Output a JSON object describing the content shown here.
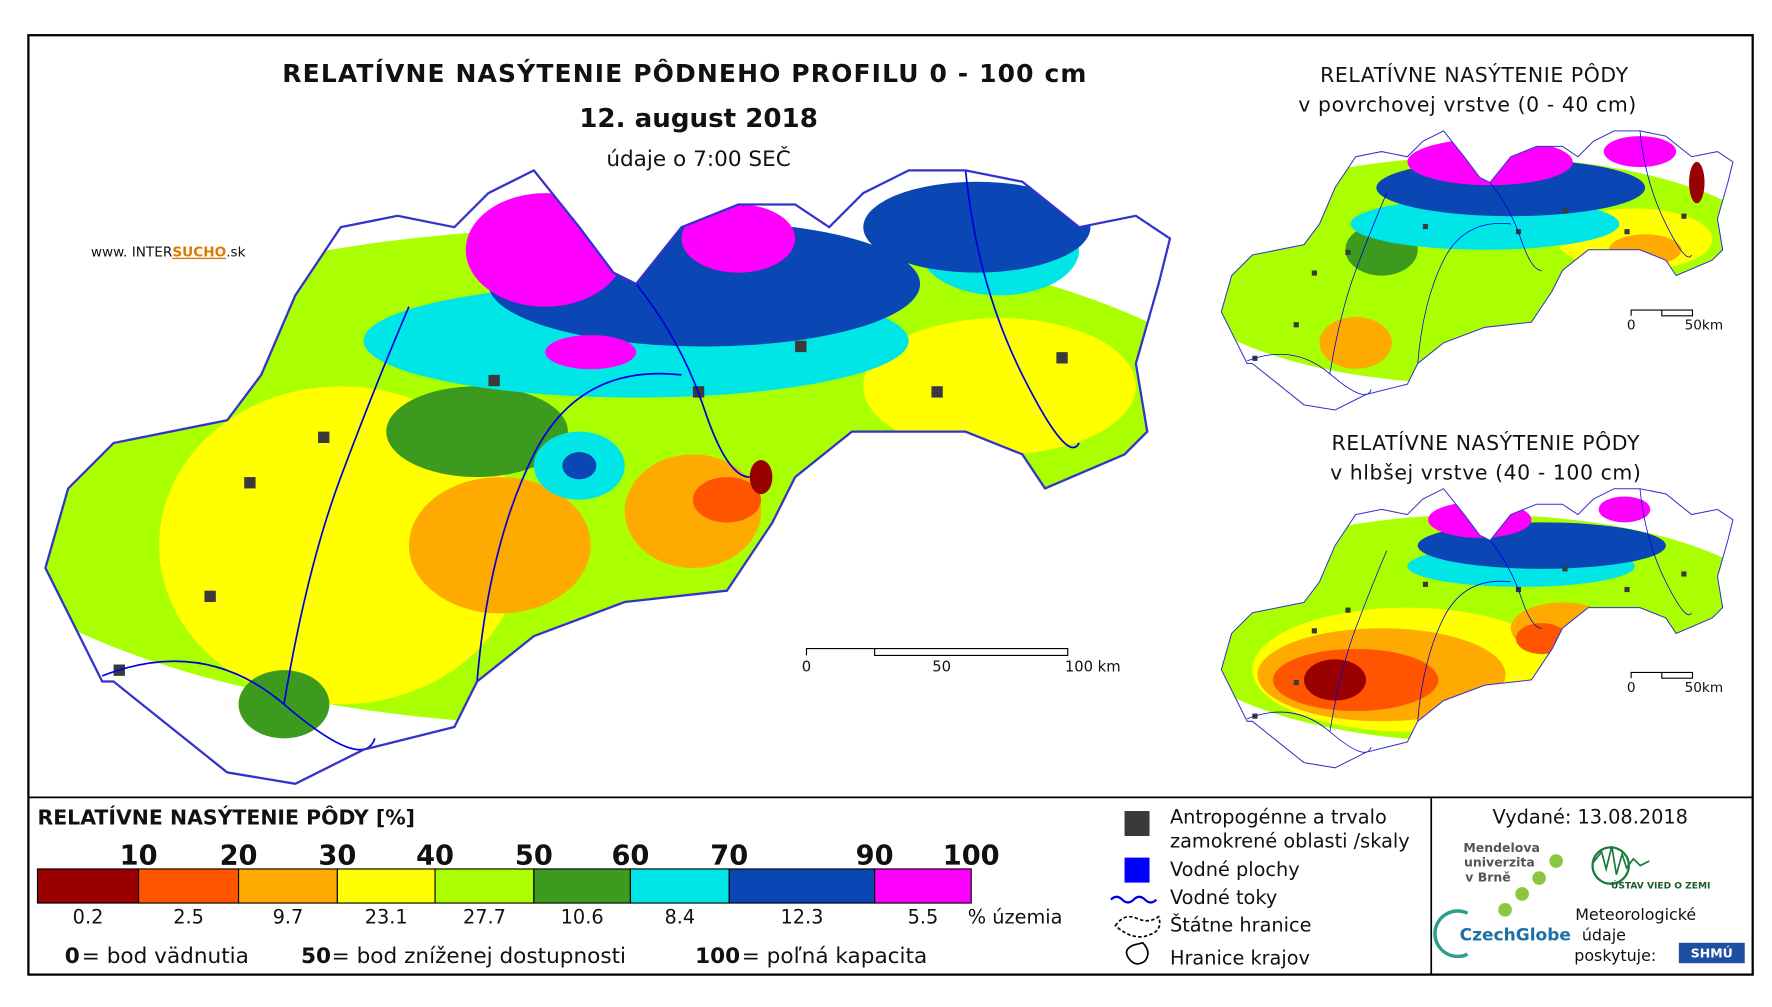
{
  "main_map": {
    "title": "RELATÍVNE NASÝTENIE PÔDNEHO PROFILU 0 - 100 cm",
    "date": "12. august 2018",
    "time_note": "údaje o 7:00 SEČ",
    "website": [
      "www. INTER",
      "SUCHO",
      ".sk"
    ],
    "scale_labels": [
      "0",
      "50",
      "100 km"
    ]
  },
  "insets": [
    {
      "title_lines": [
        "RELATÍVNE NASÝTENIE PÔDY",
        "v povrchovej vrstve (0 - 40 cm)"
      ],
      "scale_labels": [
        "0",
        "50km"
      ]
    },
    {
      "title_lines": [
        "RELATÍVNE NASÝTENIE PÔDY",
        "v hlbšej vrstve (40 - 100 cm)"
      ],
      "scale_labels": [
        "0",
        "50km"
      ]
    }
  ],
  "legend": {
    "title": "RELATÍVNE NASÝTENIE PÔDY [%]",
    "thresholds": [
      10,
      20,
      30,
      40,
      50,
      60,
      70,
      90,
      100
    ],
    "classes": [
      {
        "color": "#990000",
        "share": 0.2
      },
      {
        "color": "#ff5500",
        "share": 2.5
      },
      {
        "color": "#ffaa00",
        "share": 9.7
      },
      {
        "color": "#ffff00",
        "share": 23.1
      },
      {
        "color": "#aaff00",
        "share": 27.7
      },
      {
        "color": "#3c9b1e",
        "share": 10.6
      },
      {
        "color": "#00e6e6",
        "share": 8.4
      },
      {
        "color": "#0a46b4",
        "share": 12.3
      },
      {
        "color": "#ff00ff",
        "share": 5.5
      }
    ],
    "share_unit": "% územia",
    "definitions": [
      {
        "value": "0",
        "text": "= bod vädnutia"
      },
      {
        "value": "50",
        "text": "= bod zníženej dostupnosti"
      },
      {
        "value": "100",
        "text": "= poľná kapacita"
      }
    ]
  },
  "symbols": [
    [
      "Antropogénne a trvalo",
      "zamokrené oblasti /skaly"
    ],
    [
      "Vodné plochy"
    ],
    [
      "Vodné toky"
    ],
    [
      "Štátne hranice"
    ],
    [
      "Hranice krajov"
    ]
  ],
  "issued": "Vydané: 13.08.2018",
  "logos": {
    "mendel": [
      "Mendelova",
      "univerzita",
      "v Brně"
    ],
    "czechglobe": "CzechGlobe",
    "uvz": "ÚSTAV VIED O ZEMI",
    "shmu_note": [
      "Meteorologické",
      "údaje",
      "poskytuje:"
    ],
    "shmu": "SHMÚ"
  }
}
